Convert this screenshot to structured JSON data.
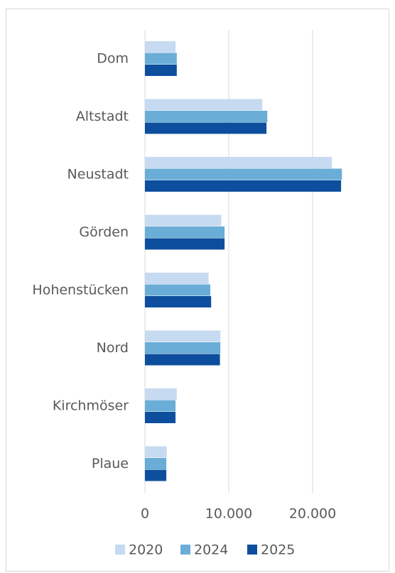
{
  "chart_data": {
    "type": "bar",
    "orientation": "horizontal",
    "categories": [
      "Dom",
      "Altstadt",
      "Neustadt",
      "Görden",
      "Hohenstücken",
      "Nord",
      "Kirchmöser",
      "Plaue"
    ],
    "series": [
      {
        "name": "2020",
        "color": "#c6daf1",
        "values": [
          3650,
          14000,
          22300,
          9100,
          7600,
          9000,
          3800,
          2600
        ]
      },
      {
        "name": "2024",
        "color": "#6aadd7",
        "values": [
          3800,
          14600,
          23500,
          9500,
          7800,
          9000,
          3650,
          2550
        ]
      },
      {
        "name": "2025",
        "color": "#0d4f9e",
        "values": [
          3800,
          14500,
          23400,
          9500,
          7900,
          8950,
          3650,
          2550
        ]
      }
    ],
    "xlim": [
      0,
      25000
    ],
    "xticks": [
      0,
      {
        "value": 10000,
        "label": "10.000"
      },
      {
        "value": 20000,
        "label": "20.000"
      }
    ],
    "grid": true,
    "legend": "bottom"
  }
}
